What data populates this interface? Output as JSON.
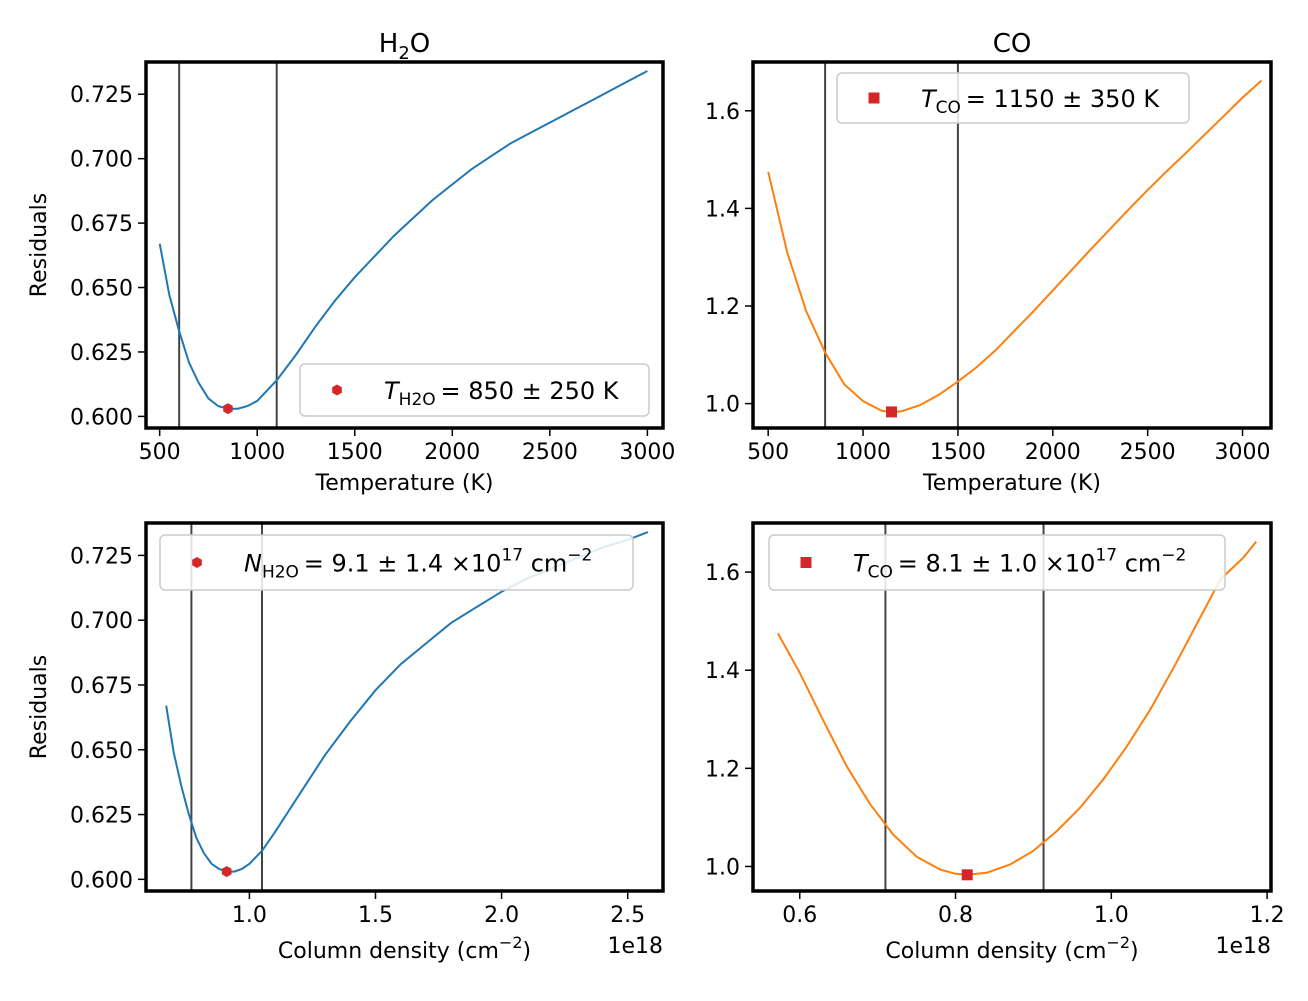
{
  "colors": {
    "h2o_line": "#1f77b4",
    "co_line": "#ff7f0e",
    "marker": "#d62728",
    "vline": "#444444",
    "legend_border": "#cccccc"
  },
  "chart_data": [
    {
      "type": "line",
      "panel": "top-left",
      "title_main": "H",
      "title_sub": "2",
      "title_end": "O",
      "xlabel": "Temperature (K)",
      "ylabel": "Residuals",
      "xlim": [
        430,
        3080
      ],
      "ylim": [
        0.5955,
        0.7375
      ],
      "xticks": [
        500,
        1000,
        1500,
        2000,
        2500,
        3000
      ],
      "xtick_labels": [
        "500",
        "1000",
        "1500",
        "2000",
        "2500",
        "3000"
      ],
      "yticks": [
        0.6,
        0.625,
        0.65,
        0.675,
        0.7,
        0.725
      ],
      "ytick_labels": [
        "0.600",
        "0.625",
        "0.650",
        "0.675",
        "0.700",
        "0.725"
      ],
      "x_offset_label": "",
      "vlines": [
        600,
        1100
      ],
      "series": [
        {
          "x": [
            500,
            550,
            600,
            650,
            700,
            750,
            800,
            850,
            900,
            950,
            1000,
            1100,
            1200,
            1300,
            1400,
            1500,
            1600,
            1700,
            1800,
            1900,
            2000,
            2100,
            2200,
            2300,
            2400,
            2500,
            2600,
            2700,
            2800,
            2900,
            3000
          ],
          "y": [
            0.667,
            0.647,
            0.633,
            0.621,
            0.613,
            0.607,
            0.604,
            0.603,
            0.603,
            0.604,
            0.606,
            0.614,
            0.624,
            0.635,
            0.645,
            0.654,
            0.662,
            0.67,
            0.677,
            0.684,
            0.69,
            0.696,
            0.701,
            0.706,
            0.71,
            0.714,
            0.718,
            0.722,
            0.726,
            0.73,
            0.734
          ]
        }
      ],
      "best_point": {
        "x": 850,
        "y": 0.603,
        "marker": "hexagon"
      },
      "legend": {
        "location": "lower-right",
        "italic_symbol": "T",
        "subscript": "H2O",
        "text": "= 850 ± 250 K"
      }
    },
    {
      "type": "line",
      "panel": "top-right",
      "title_main": "CO",
      "title_sub": "",
      "title_end": "",
      "xlabel": "Temperature (K)",
      "ylabel": "",
      "xlim": [
        420,
        3150
      ],
      "ylim": [
        0.95,
        1.7
      ],
      "xticks": [
        500,
        1000,
        1500,
        2000,
        2500,
        3000
      ],
      "xtick_labels": [
        "500",
        "1000",
        "1500",
        "2000",
        "2500",
        "3000"
      ],
      "yticks": [
        1.0,
        1.2,
        1.4,
        1.6
      ],
      "ytick_labels": [
        "1.0",
        "1.2",
        "1.4",
        "1.6"
      ],
      "x_offset_label": "",
      "vlines": [
        800,
        1500
      ],
      "series": [
        {
          "x": [
            500,
            600,
            700,
            800,
            900,
            1000,
            1100,
            1150,
            1200,
            1300,
            1400,
            1500,
            1600,
            1700,
            1800,
            1900,
            2000,
            2100,
            2200,
            2300,
            2400,
            2500,
            2600,
            2700,
            2800,
            2900,
            3000,
            3100
          ],
          "y": [
            1.475,
            1.31,
            1.19,
            1.105,
            1.04,
            1.005,
            0.985,
            0.983,
            0.984,
            0.997,
            1.018,
            1.045,
            1.075,
            1.11,
            1.15,
            1.19,
            1.232,
            1.274,
            1.316,
            1.357,
            1.398,
            1.438,
            1.476,
            1.513,
            1.551,
            1.589,
            1.627,
            1.662
          ]
        }
      ],
      "best_point": {
        "x": 1150,
        "y": 0.983,
        "marker": "square"
      },
      "legend": {
        "location": "upper-center",
        "italic_symbol": "T",
        "subscript": "CO",
        "text": "= 1150 ± 350 K"
      }
    },
    {
      "type": "line",
      "panel": "bottom-left",
      "title_main": "",
      "title_sub": "",
      "title_end": "",
      "xlabel": "Column density (cm",
      "xlabel_sup": "−2",
      "xlabel_end": ")",
      "ylabel": "Residuals",
      "xlim": [
        0.59,
        2.64
      ],
      "ylim": [
        0.5955,
        0.7375
      ],
      "xticks": [
        1.0,
        1.5,
        2.0,
        2.5
      ],
      "xtick_labels": [
        "1.0",
        "1.5",
        "2.0",
        "2.5"
      ],
      "yticks": [
        0.6,
        0.625,
        0.65,
        0.675,
        0.7,
        0.725
      ],
      "ytick_labels": [
        "0.600",
        "0.625",
        "0.650",
        "0.675",
        "0.700",
        "0.725"
      ],
      "x_offset_label": "1e18",
      "vlines": [
        0.77,
        1.05
      ],
      "series": [
        {
          "x": [
            0.67,
            0.7,
            0.73,
            0.76,
            0.79,
            0.82,
            0.85,
            0.88,
            0.91,
            0.94,
            0.97,
            1.0,
            1.05,
            1.1,
            1.2,
            1.3,
            1.4,
            1.5,
            1.6,
            1.7,
            1.8,
            1.9,
            2.0,
            2.1,
            2.2,
            2.3,
            2.4,
            2.5,
            2.58
          ],
          "y": [
            0.667,
            0.649,
            0.636,
            0.625,
            0.616,
            0.61,
            0.606,
            0.604,
            0.603,
            0.603,
            0.604,
            0.606,
            0.611,
            0.618,
            0.633,
            0.648,
            0.661,
            0.673,
            0.683,
            0.691,
            0.699,
            0.705,
            0.711,
            0.716,
            0.72,
            0.724,
            0.728,
            0.731,
            0.734
          ]
        }
      ],
      "best_point": {
        "x": 0.91,
        "y": 0.603,
        "marker": "hexagon"
      },
      "legend": {
        "location": "upper-left",
        "italic_symbol": "N",
        "subscript": "H2O",
        "text": "= 9.1 ± 1.4 ×10",
        "sup": "17",
        "text_end": " cm",
        "sup_end": "−2"
      }
    },
    {
      "type": "line",
      "panel": "bottom-right",
      "title_main": "",
      "title_sub": "",
      "title_end": "",
      "xlabel": "Column density (cm",
      "xlabel_sup": "−2",
      "xlabel_end": ")",
      "ylabel": "",
      "xlim": [
        0.54,
        1.205
      ],
      "ylim": [
        0.95,
        1.7
      ],
      "xticks": [
        0.6,
        0.8,
        1.0,
        1.2
      ],
      "xtick_labels": [
        "0.6",
        "0.8",
        "1.0",
        "1.2"
      ],
      "yticks": [
        1.0,
        1.2,
        1.4,
        1.6
      ],
      "ytick_labels": [
        "1.0",
        "1.2",
        "1.4",
        "1.6"
      ],
      "x_offset_label": "1e18",
      "vlines": [
        0.71,
        0.913
      ],
      "series": [
        {
          "x": [
            0.572,
            0.6,
            0.63,
            0.66,
            0.69,
            0.72,
            0.75,
            0.78,
            0.8,
            0.815,
            0.84,
            0.87,
            0.9,
            0.93,
            0.96,
            0.99,
            1.02,
            1.05,
            1.08,
            1.11,
            1.14,
            1.17,
            1.186
          ],
          "y": [
            1.475,
            1.395,
            1.298,
            1.205,
            1.128,
            1.065,
            1.02,
            0.994,
            0.985,
            0.983,
            0.987,
            1.004,
            1.032,
            1.072,
            1.12,
            1.178,
            1.245,
            1.32,
            1.405,
            1.495,
            1.585,
            1.63,
            1.662
          ]
        }
      ],
      "best_point": {
        "x": 0.815,
        "y": 0.983,
        "marker": "square"
      },
      "legend": {
        "location": "upper-left",
        "italic_symbol": "T",
        "subscript": "CO",
        "text": "= 8.1 ± 1.0 ×10",
        "sup": "17",
        "text_end": " cm",
        "sup_end": "−2"
      }
    }
  ]
}
